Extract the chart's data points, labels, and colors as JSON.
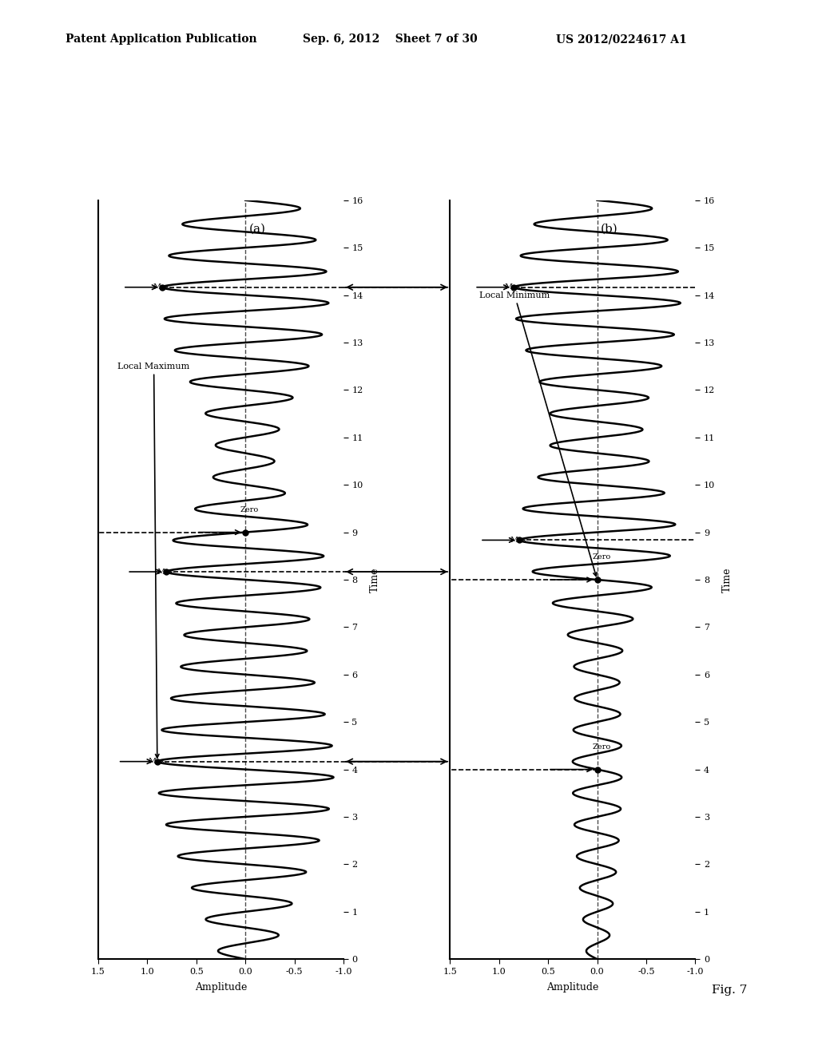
{
  "header_left": "Patent Application Publication",
  "header_mid": "Sep. 6, 2012    Sheet 7 of 30",
  "header_right": "US 2012/0224617 A1",
  "fig_label": "Fig. 7",
  "plot_a_label": "(a)",
  "plot_b_label": "(b)",
  "local_max_label": "Local Maximum",
  "local_min_label": "Local Minimum",
  "time_label": "Time",
  "amplitude_label": "Amplitude",
  "background_color": "#ffffff",
  "amp_ticks_a": [
    1.5,
    1.0,
    0.5,
    0.0,
    -0.5,
    -1.0
  ],
  "amp_ticks_b": [
    1.5,
    1.0,
    0.5,
    0.0,
    -0.5,
    -1.0
  ],
  "time_ticks": [
    0,
    1,
    2,
    3,
    4,
    5,
    6,
    7,
    8,
    9,
    10,
    11,
    12,
    13,
    14,
    15,
    16
  ],
  "t_min": 0,
  "t_max": 16,
  "amp_min": -1.0,
  "amp_max": 1.5
}
